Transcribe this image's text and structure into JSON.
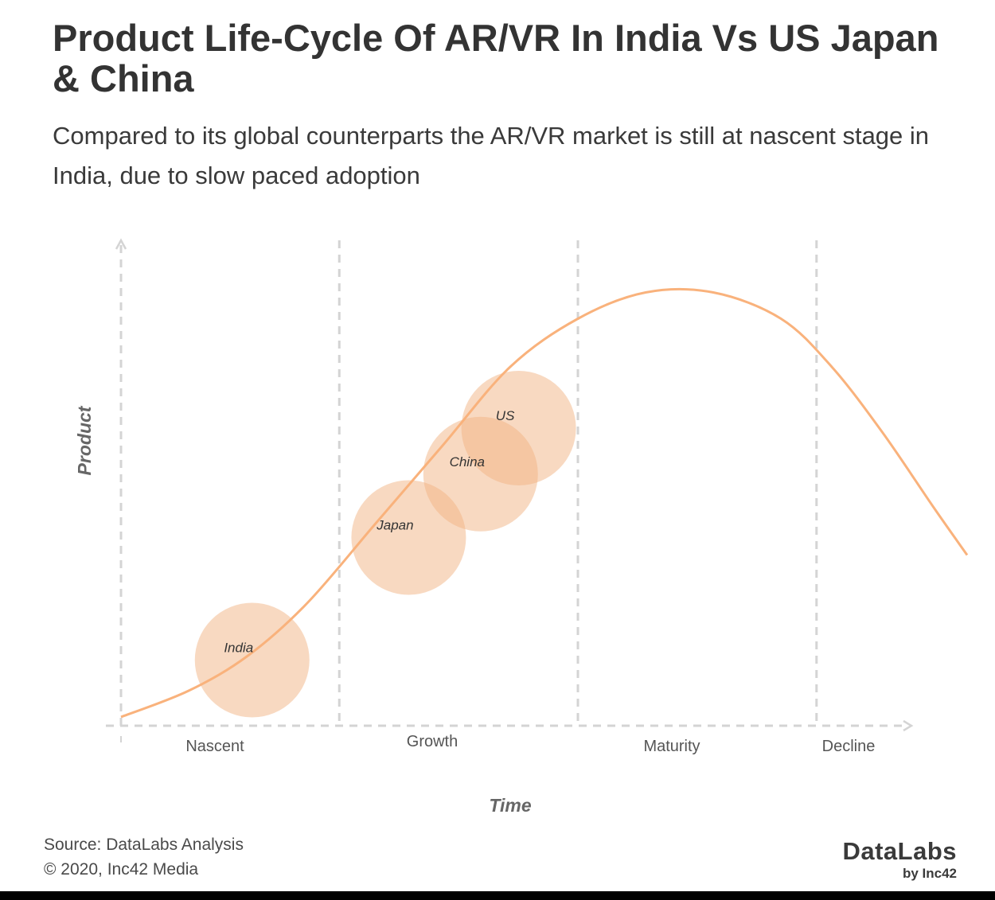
{
  "title": "Product Life-Cycle Of AR/VR In India Vs US Japan & China",
  "subtitle": "Compared to its global counterparts the AR/VR market is still at nascent stage in India, due to slow paced adoption",
  "chart_data": {
    "type": "line",
    "title": "Product Life-Cycle Of AR/VR In India Vs US Japan & China",
    "xlabel": "Time",
    "ylabel": "Product",
    "xlim": [
      0,
      100
    ],
    "ylim": [
      0,
      100
    ],
    "grid": false,
    "stages": [
      "Nascent",
      "Growth",
      "Maturity",
      "Decline"
    ],
    "stage_boundaries": [
      25.8,
      54.0,
      82.2
    ],
    "curve": {
      "x": [
        0,
        8,
        15,
        22,
        30,
        38,
        46,
        54,
        62,
        70,
        78,
        84,
        90,
        96,
        100
      ],
      "y": [
        2,
        8,
        16,
        28,
        46,
        64,
        82,
        93,
        99,
        99,
        93,
        82,
        67,
        50,
        39
      ]
    },
    "points": [
      {
        "label": "India",
        "x": 15.5,
        "y": 15
      },
      {
        "label": "Japan",
        "x": 34,
        "y": 43
      },
      {
        "label": "China",
        "x": 42.5,
        "y": 57.5
      },
      {
        "label": "US",
        "x": 47,
        "y": 68
      }
    ],
    "colors": {
      "curve": "#f9b27c",
      "bubble": "#f2b483",
      "axis": "#d4d4d4",
      "text": "#555555"
    }
  },
  "footer": {
    "source": "Source: DataLabs Analysis",
    "copyright": "© 2020, Inc42 Media"
  },
  "brand": {
    "name": "DataLabs",
    "by": "by Inc42"
  }
}
